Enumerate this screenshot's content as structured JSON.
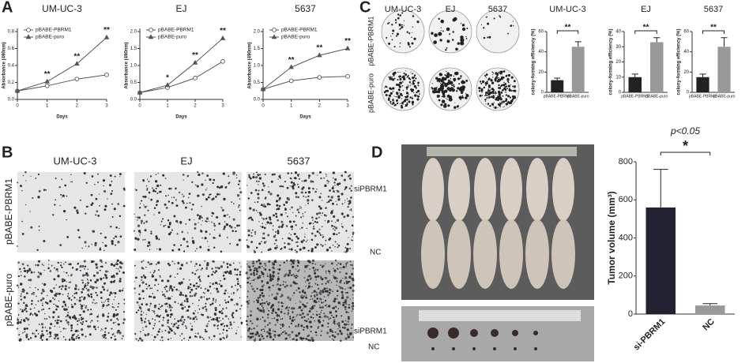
{
  "panel_labels": [
    "A",
    "B",
    "C",
    "D"
  ],
  "panel_b": {
    "titles": [
      "UM-UC-3",
      "EJ",
      "5637"
    ],
    "rows": [
      "pBABE-PBRM1",
      "pBABE-puro"
    ]
  },
  "panel_c": {
    "titles": [
      "UM-UC-3",
      "EJ",
      "5637"
    ],
    "rows": [
      "pBABE-PBRM1",
      "pBABE-puro"
    ]
  },
  "panel_d": {
    "mice_rows": [
      "siPBRM1",
      "NC"
    ],
    "tumor_rows": [
      "siPBRM1",
      "NC"
    ]
  },
  "chart_data": [
    {
      "type": "line",
      "title": "UM-UC-3",
      "xlabel": "Days",
      "ylabel": "Absorbance (490nm)",
      "x": [
        0,
        1,
        2,
        3
      ],
      "xlim": [
        0,
        3
      ],
      "xticks": [
        0,
        1,
        2,
        3
      ],
      "ylim": [
        0,
        0.8
      ],
      "yticks": [
        {
          "value": 0,
          "label": "0.0"
        },
        0.2,
        0.4,
        0.6,
        0.8
      ],
      "series": [
        {
          "name": "pBABE-PBRM1",
          "color": "#555555",
          "marker": "circle",
          "values": [
            0.1,
            0.16,
            0.24,
            0.29
          ]
        },
        {
          "name": "pBABE-puro",
          "color": "#555555",
          "marker": "triangle",
          "values": [
            0.1,
            0.21,
            0.42,
            0.73
          ]
        }
      ],
      "annotations": [
        "**",
        "**",
        "**"
      ]
    },
    {
      "type": "line",
      "title": "EJ",
      "xlabel": "Days",
      "ylabel": "Absorbance (490nm)",
      "x": [
        0,
        1,
        2,
        3
      ],
      "xlim": [
        0,
        3
      ],
      "xticks": [
        0,
        1,
        2,
        3
      ],
      "ylim": [
        0,
        2
      ],
      "yticks": [
        {
          "value": 0,
          "label": "0.0"
        },
        0.5,
        {
          "value": 1,
          "label": "1.0"
        },
        1.5,
        {
          "value": 2,
          "label": "2.0"
        }
      ],
      "series": [
        {
          "name": "pBABE-PBRM1",
          "color": "#555555",
          "marker": "circle",
          "values": [
            0.2,
            0.35,
            0.63,
            1.12
          ]
        },
        {
          "name": "pBABE-puro",
          "color": "#555555",
          "marker": "triangle",
          "values": [
            0.2,
            0.42,
            1.08,
            1.8
          ]
        }
      ],
      "annotations": [
        "*",
        "**",
        "**"
      ]
    },
    {
      "type": "line",
      "title": "5637",
      "xlabel": "Days",
      "ylabel": "Absorbance (490nm)",
      "x": [
        0,
        1,
        2,
        3
      ],
      "xlim": [
        0,
        3
      ],
      "xticks": [
        0,
        1,
        2,
        3
      ],
      "ylim": [
        0,
        2
      ],
      "yticks": [
        {
          "value": 0,
          "label": "0.0"
        },
        0.5,
        {
          "value": 1,
          "label": "1.0"
        },
        1.5,
        {
          "value": 2,
          "label": "2.0"
        }
      ],
      "series": [
        {
          "name": "pBABE-PBRM1",
          "color": "#555555",
          "marker": "circle",
          "values": [
            0.3,
            0.55,
            0.65,
            0.68
          ]
        },
        {
          "name": "pBABE-puro",
          "color": "#555555",
          "marker": "triangle",
          "values": [
            0.3,
            0.95,
            1.3,
            1.5
          ]
        }
      ],
      "annotations": [
        "**",
        "**",
        "**"
      ]
    },
    {
      "type": "bar",
      "title": "UM-UC-3",
      "ylabel": "colony-forming efficiency (%)",
      "categories": [
        "pBABE-PBRM1",
        "pBABE-puro"
      ],
      "values": [
        12,
        45
      ],
      "errors": [
        2,
        5
      ],
      "colors": [
        "#222222",
        "#999999"
      ],
      "ylim": [
        0,
        60
      ],
      "yticks": [
        0,
        20,
        40,
        60
      ],
      "annotation": "**"
    },
    {
      "type": "bar",
      "title": "EJ",
      "ylabel": "colony-forming efficiency (%)",
      "categories": [
        "pBABE-PBRM1",
        "pBABE-puro"
      ],
      "values": [
        10,
        33
      ],
      "errors": [
        2,
        3
      ],
      "colors": [
        "#222222",
        "#999999"
      ],
      "ylim": [
        0,
        40
      ],
      "yticks": [
        0,
        10,
        20,
        30,
        40
      ],
      "annotation": "**"
    },
    {
      "type": "bar",
      "title": "5637",
      "ylabel": "colony-forming efficiency (%)",
      "categories": [
        "pBABE-PBRM1",
        "pBABE-puro"
      ],
      "values": [
        15,
        45
      ],
      "errors": [
        3,
        9
      ],
      "colors": [
        "#222222",
        "#999999"
      ],
      "ylim": [
        0,
        60
      ],
      "yticks": [
        0,
        20,
        40,
        60
      ],
      "annotation": "**"
    },
    {
      "type": "bar",
      "ylabel": "Tumor volume (mm³)",
      "subtitle": "p<0.05",
      "categories": [
        "si-PBRM1",
        "NC"
      ],
      "values": [
        560,
        45
      ],
      "errors": [
        200,
        10
      ],
      "colors": [
        "#222233",
        "#999999"
      ],
      "ylim": [
        0,
        800
      ],
      "yticks": [
        0,
        200,
        400,
        600,
        800
      ],
      "annotation": "*"
    }
  ]
}
